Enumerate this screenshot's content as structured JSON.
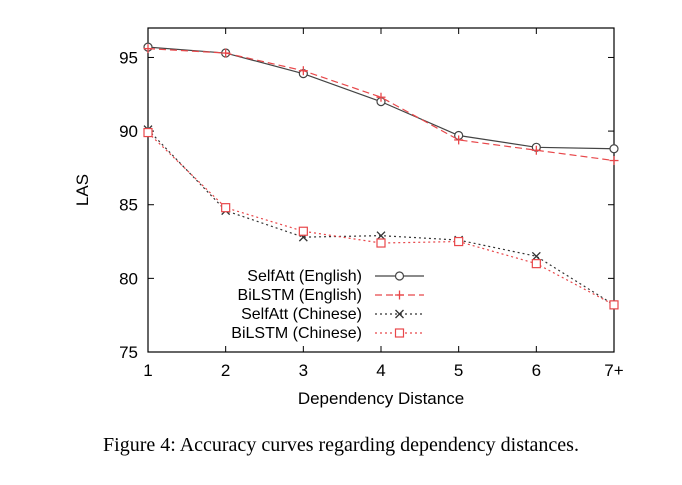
{
  "caption": "Figure 4: Accuracy curves regarding dependency distances.",
  "chart_data": {
    "type": "line",
    "title": "",
    "xlabel": "Dependency Distance",
    "ylabel": "LAS",
    "categories": [
      "1",
      "2",
      "3",
      "4",
      "5",
      "6",
      "7+"
    ],
    "yticks": [
      75,
      80,
      85,
      90,
      95
    ],
    "ylim": [
      75,
      97
    ],
    "grid": false,
    "legend_position": "bottom-left",
    "series": [
      {
        "name": "SelfAtt  (English)",
        "values": [
          95.7,
          95.3,
          93.9,
          92.0,
          89.7,
          88.9,
          88.8
        ],
        "color": "#444444",
        "dash": "solid",
        "marker": "circle"
      },
      {
        "name": "BiLSTM  (English)",
        "values": [
          95.6,
          95.3,
          94.1,
          92.3,
          89.4,
          88.7,
          88.0
        ],
        "color": "#e8474a",
        "dash": "dashed",
        "marker": "plus"
      },
      {
        "name": "SelfAtt  (Chinese)",
        "values": [
          90.1,
          84.6,
          82.8,
          82.9,
          82.6,
          81.5,
          78.2
        ],
        "color": "#333333",
        "dash": "dotted",
        "marker": "cross"
      },
      {
        "name": "BiLSTM (Chinese)",
        "values": [
          89.9,
          84.8,
          83.2,
          82.4,
          82.5,
          81.0,
          78.2
        ],
        "color": "#e8474a",
        "dash": "dotted",
        "marker": "square"
      }
    ]
  }
}
